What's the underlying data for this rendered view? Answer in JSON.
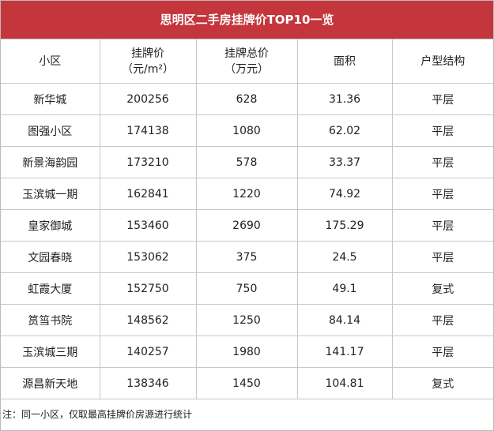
{
  "title": "思明区二手房挂牌价TOP10一览",
  "table": {
    "header": [
      [
        "小区"
      ],
      [
        "挂牌价",
        "（元/m²）"
      ],
      [
        "挂牌总价",
        "（万元）"
      ],
      [
        "面积"
      ],
      [
        "户型结构"
      ]
    ],
    "rows": [
      [
        "新华城",
        200256,
        628,
        31.36,
        "平层"
      ],
      [
        "图强小区",
        174138,
        1080,
        62.02,
        "平层"
      ],
      [
        "新景海韵园",
        173210,
        578,
        33.37,
        "平层"
      ],
      [
        "玉滨城一期",
        162841,
        1220,
        74.92,
        "平层"
      ],
      [
        "皇家御城",
        153460,
        2690,
        175.29,
        "平层"
      ],
      [
        "文园春晓",
        153062,
        375,
        24.5,
        "平层"
      ],
      [
        "虹霞大厦",
        152750,
        750,
        49.1,
        "复式"
      ],
      [
        "筼筜书院",
        148562,
        1250,
        84.14,
        "平层"
      ],
      [
        "玉滨城三期",
        140257,
        1980,
        141.17,
        "平层"
      ],
      [
        "源昌新天地",
        138346,
        1450,
        104.81,
        "复式"
      ]
    ]
  },
  "note": "注：同一小区，仅取最高挂牌价房源进行统计"
}
